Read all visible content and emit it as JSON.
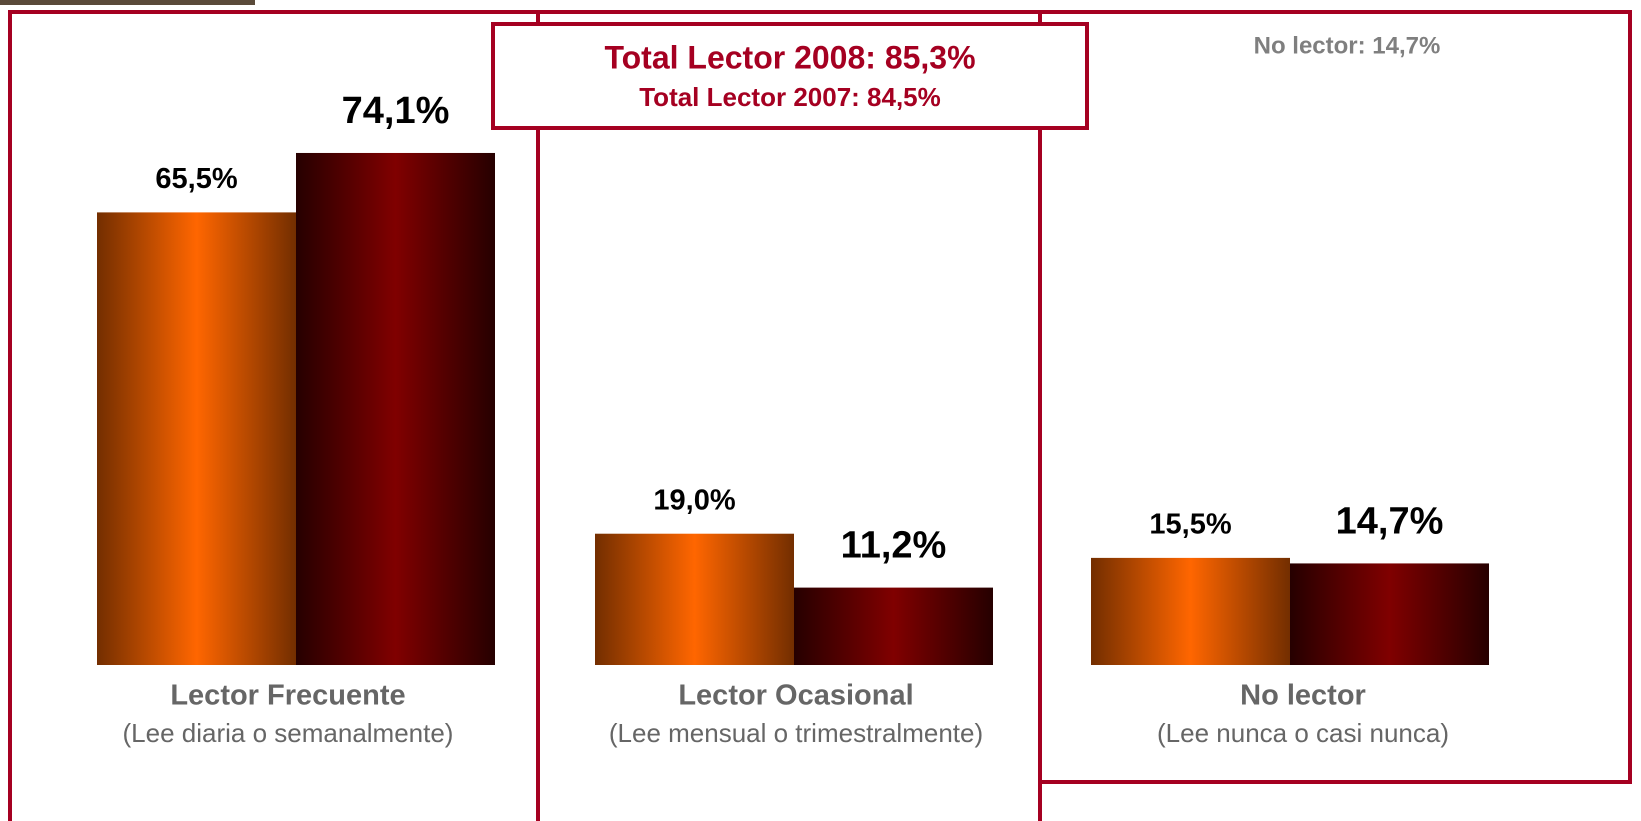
{
  "chart_data": {
    "type": "bar",
    "categories": [
      "Lector Frecuente",
      "Lector Ocasional",
      "No lector"
    ],
    "category_subtitles": [
      "(Lee diaria o semanalmente)",
      "(Lee mensual o trimestralmente)",
      "(Lee nunca o casi nunca)"
    ],
    "series": [
      {
        "color": "#ff6600",
        "values": [
          65.5,
          19.0,
          15.5
        ],
        "value_labels": [
          "65,5%",
          "19,0%",
          "15,5%"
        ]
      },
      {
        "color": "#800000",
        "values": [
          74.1,
          11.2,
          14.7
        ],
        "value_labels": [
          "74,1%",
          "11,2%",
          "14,7%"
        ]
      }
    ],
    "annotations": [
      "Total Lector 2008: 85,3%",
      "Total Lector 2007: 84,5%",
      "No lector: 14,7%"
    ]
  }
}
